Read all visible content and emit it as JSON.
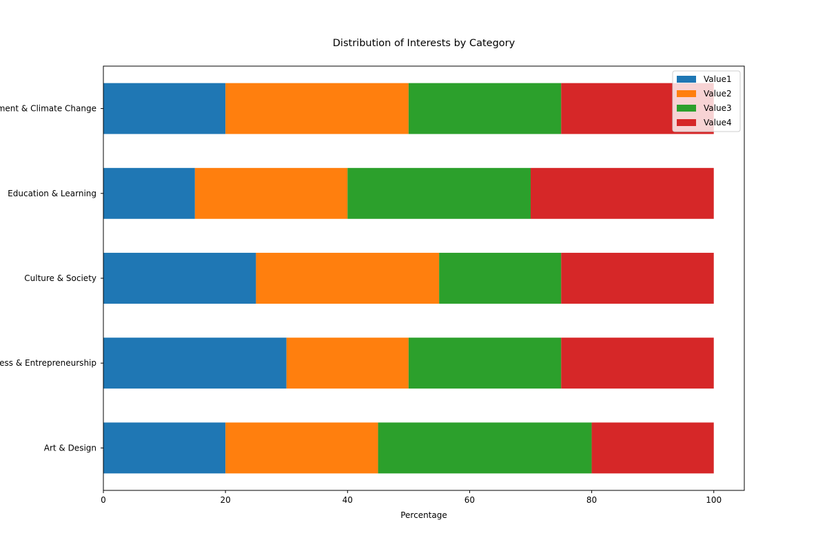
{
  "chart_data": {
    "type": "bar",
    "orientation": "horizontal",
    "stacked": true,
    "title": "Distribution of Interests by Category",
    "xlabel": "Percentage",
    "ylabel": "",
    "xlim": [
      0,
      105
    ],
    "xticks": [
      0,
      20,
      40,
      60,
      80,
      100
    ],
    "categories": [
      "Art & Design",
      "Business & Entrepreneurship",
      "Culture & Society",
      "Education & Learning",
      "Environment & Climate Change"
    ],
    "series": [
      {
        "name": "Value1",
        "color": "#1f77b4",
        "values": [
          20,
          30,
          25,
          15,
          20
        ]
      },
      {
        "name": "Value2",
        "color": "#ff7f0e",
        "values": [
          25,
          20,
          30,
          25,
          30
        ]
      },
      {
        "name": "Value3",
        "color": "#2ca02c",
        "values": [
          35,
          25,
          20,
          30,
          25
        ]
      },
      {
        "name": "Value4",
        "color": "#d62728",
        "values": [
          20,
          25,
          25,
          30,
          25
        ]
      }
    ],
    "legend": "top-right",
    "grid": false
  }
}
